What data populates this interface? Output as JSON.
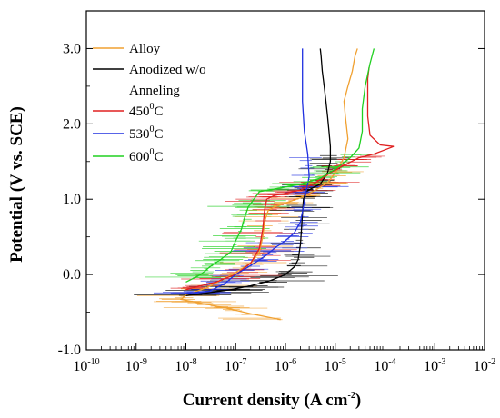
{
  "chart_data": {
    "type": "line",
    "xlabel": "Current density (A cm",
    "xlabel_exp": "-2",
    "xlabel_close": ")",
    "ylabel": "Potential (V vs. SCE)",
    "x_scale": "log",
    "xlim": [
      1e-10,
      0.01
    ],
    "ylim": [
      -1.0,
      3.5
    ],
    "x_ticks": [
      {
        "value": 1e-10,
        "base": "10",
        "exp": "-10"
      },
      {
        "value": 1e-09,
        "base": "10",
        "exp": "-9"
      },
      {
        "value": 1e-08,
        "base": "10",
        "exp": "-8"
      },
      {
        "value": 1e-07,
        "base": "10",
        "exp": "-7"
      },
      {
        "value": 1e-06,
        "base": "10",
        "exp": "-6"
      },
      {
        "value": 1e-05,
        "base": "10",
        "exp": "-5"
      },
      {
        "value": 0.0001,
        "base": "10",
        "exp": "-4"
      },
      {
        "value": 0.001,
        "base": "10",
        "exp": "-3"
      },
      {
        "value": 0.01,
        "base": "10",
        "exp": "-2"
      }
    ],
    "y_ticks": [
      {
        "value": -1.0,
        "label": "-1.0"
      },
      {
        "value": 0.0,
        "label": "0.0"
      },
      {
        "value": 1.0,
        "label": "1.0"
      },
      {
        "value": 2.0,
        "label": "2.0"
      },
      {
        "value": 3.0,
        "label": "3.0"
      }
    ],
    "grid": false,
    "legend_position": "top-left",
    "series": [
      {
        "name": "Alloy",
        "legend_lines": [
          "Alloy"
        ],
        "color": "#f0a030",
        "points": [
          [
            8e-07,
            -0.6
          ],
          [
            2e-07,
            -0.52
          ],
          [
            6e-08,
            -0.44
          ],
          [
            2e-08,
            -0.38
          ],
          [
            8e-09,
            -0.33
          ],
          [
            1e-08,
            -0.27
          ],
          [
            2.5e-08,
            -0.18
          ],
          [
            5e-08,
            -0.08
          ],
          [
            1e-07,
            0.03
          ],
          [
            2e-07,
            0.15
          ],
          [
            3e-07,
            0.3
          ],
          [
            3.5e-07,
            0.5
          ],
          [
            3.8e-07,
            0.7
          ],
          [
            4.5e-07,
            0.85
          ],
          [
            6e-07,
            0.9
          ],
          [
            1e-06,
            0.95
          ],
          [
            2e-06,
            1.02
          ],
          [
            4e-06,
            1.12
          ],
          [
            7e-06,
            1.22
          ],
          [
            1e-05,
            1.35
          ],
          [
            1.5e-05,
            1.55
          ],
          [
            1.8e-05,
            1.8
          ],
          [
            1.6e-05,
            2.1
          ],
          [
            1.5e-05,
            2.3
          ],
          [
            1.8e-05,
            2.5
          ],
          [
            2.2e-05,
            2.7
          ],
          [
            2.5e-05,
            2.9
          ],
          [
            2.8e-05,
            3.0
          ]
        ]
      },
      {
        "name": "Anodized w/o Anneling",
        "legend_lines": [
          "Anodized w/o",
          "Anneling"
        ],
        "color": "#000000",
        "points": [
          [
            1e-08,
            -0.28
          ],
          [
            3e-08,
            -0.24
          ],
          [
            8e-08,
            -0.2
          ],
          [
            2e-07,
            -0.15
          ],
          [
            5e-07,
            -0.08
          ],
          [
            1e-06,
            0.0
          ],
          [
            1.5e-06,
            0.1
          ],
          [
            1.8e-06,
            0.2
          ],
          [
            2e-06,
            0.4
          ],
          [
            2.1e-06,
            0.6
          ],
          [
            2.2e-06,
            0.8
          ],
          [
            2.3e-06,
            1.0
          ],
          [
            2.6e-06,
            1.1
          ],
          [
            3.5e-06,
            1.15
          ],
          [
            5e-06,
            1.2
          ],
          [
            7e-06,
            1.35
          ],
          [
            8e-06,
            1.5
          ],
          [
            8e-06,
            1.7
          ],
          [
            7.5e-06,
            1.9
          ],
          [
            7e-06,
            2.1
          ],
          [
            6.5e-06,
            2.3
          ],
          [
            6e-06,
            2.5
          ],
          [
            5.5e-06,
            2.7
          ],
          [
            5.2e-06,
            2.9
          ],
          [
            5e-06,
            3.0
          ]
        ]
      },
      {
        "name": "450°C",
        "legend_base": "450",
        "legend_sup": "0",
        "legend_suffix": "C",
        "color": "#e02020",
        "points": [
          [
            1e-08,
            -0.2
          ],
          [
            4e-08,
            -0.1
          ],
          [
            1e-07,
            0.0
          ],
          [
            2e-07,
            0.15
          ],
          [
            3e-07,
            0.35
          ],
          [
            3.5e-07,
            0.6
          ],
          [
            3.8e-07,
            0.85
          ],
          [
            4.2e-07,
            1.0
          ],
          [
            6e-07,
            1.05
          ],
          [
            1e-06,
            1.08
          ],
          [
            2e-06,
            1.12
          ],
          [
            4e-06,
            1.22
          ],
          [
            8e-06,
            1.35
          ],
          [
            1.5e-05,
            1.45
          ],
          [
            3e-05,
            1.55
          ],
          [
            6e-05,
            1.6
          ],
          [
            0.00015,
            1.7
          ],
          [
            8e-05,
            1.72
          ],
          [
            5e-05,
            1.85
          ],
          [
            4.5e-05,
            2.1
          ],
          [
            4.5e-05,
            2.4
          ],
          [
            4.5e-05,
            2.6
          ],
          [
            4.8e-05,
            2.75
          ]
        ]
      },
      {
        "name": "530°C",
        "legend_base": "530",
        "legend_sup": "0",
        "legend_suffix": "C",
        "color": "#2030e0",
        "points": [
          [
            1e-08,
            -0.25
          ],
          [
            3e-08,
            -0.22
          ],
          [
            6e-08,
            -0.12
          ],
          [
            1e-07,
            0.0
          ],
          [
            2e-07,
            0.12
          ],
          [
            4e-07,
            0.25
          ],
          [
            6e-07,
            0.35
          ],
          [
            1e-06,
            0.45
          ],
          [
            1.5e-06,
            0.55
          ],
          [
            2e-06,
            0.7
          ],
          [
            2.3e-06,
            0.9
          ],
          [
            2.6e-06,
            1.1
          ],
          [
            3e-06,
            1.3
          ],
          [
            2.8e-06,
            1.6
          ],
          [
            2.4e-06,
            1.9
          ],
          [
            2.2e-06,
            2.3
          ],
          [
            2.2e-06,
            2.7
          ],
          [
            2.2e-06,
            3.0
          ]
        ]
      },
      {
        "name": "600°C",
        "legend_base": "600",
        "legend_sup": "0",
        "legend_suffix": "C",
        "color": "#20d020",
        "points": [
          [
            1e-08,
            -0.1
          ],
          [
            2e-08,
            0.0
          ],
          [
            3e-08,
            0.1
          ],
          [
            5e-08,
            0.2
          ],
          [
            8e-08,
            0.3
          ],
          [
            1e-07,
            0.45
          ],
          [
            1.3e-07,
            0.6
          ],
          [
            1.5e-07,
            0.75
          ],
          [
            1.8e-07,
            0.9
          ],
          [
            3e-07,
            1.1
          ],
          [
            8e-07,
            1.15
          ],
          [
            2e-06,
            1.2
          ],
          [
            5e-06,
            1.28
          ],
          [
            1e-05,
            1.4
          ],
          [
            2e-05,
            1.55
          ],
          [
            3e-05,
            1.68
          ],
          [
            3.5e-05,
            1.9
          ],
          [
            3.5e-05,
            2.2
          ],
          [
            4e-05,
            2.5
          ],
          [
            5e-05,
            2.8
          ],
          [
            6e-05,
            3.0
          ]
        ]
      }
    ]
  }
}
